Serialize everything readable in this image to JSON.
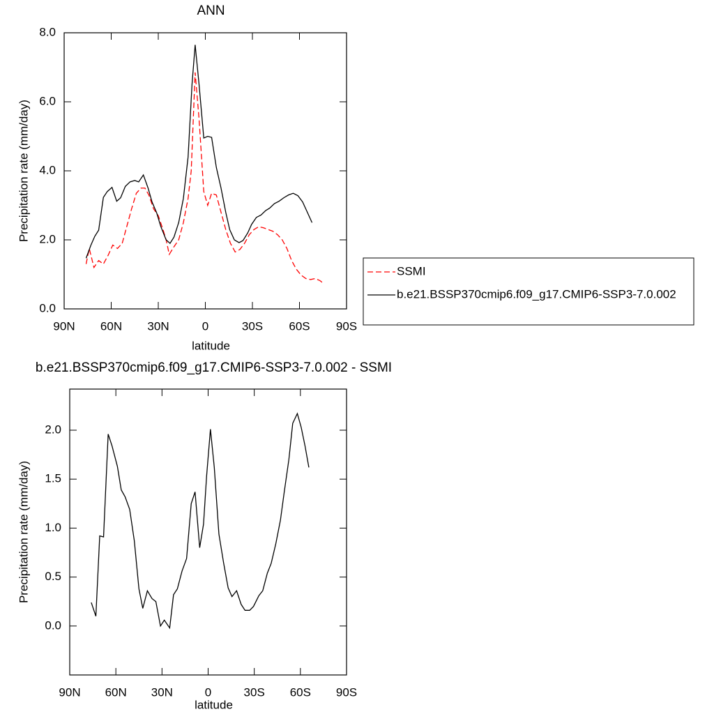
{
  "chart_data": [
    {
      "type": "line",
      "title": "ANN",
      "xlabel": "latitude",
      "ylabel": "Precipitation rate (mm/day)",
      "xlim": [
        90,
        -90
      ],
      "ylim": [
        0,
        8
      ],
      "xticks": [
        {
          "value": 90,
          "label": "90N"
        },
        {
          "value": 60,
          "label": "60N"
        },
        {
          "value": 30,
          "label": "30N"
        },
        0,
        {
          "value": -30,
          "label": "30S"
        },
        {
          "value": -60,
          "label": "60S"
        },
        {
          "value": -90,
          "label": "90S"
        }
      ],
      "yticks": [
        {
          "value": 0,
          "label": "0.0"
        },
        {
          "value": 2,
          "label": "2.0"
        },
        {
          "value": 4,
          "label": "4.0"
        },
        {
          "value": 6,
          "label": "6.0"
        },
        {
          "value": 8,
          "label": "8.0"
        }
      ],
      "legend": "right",
      "series": [
        {
          "name": "SSMI",
          "color": "#ff0000",
          "dash": true,
          "x": [
            76,
            74,
            71,
            68,
            65,
            62,
            59,
            56,
            53,
            50,
            47,
            44,
            41,
            38.5,
            36,
            33,
            30,
            27,
            25,
            23,
            20,
            17,
            14,
            11,
            9,
            6.5,
            4,
            1,
            -1.5,
            -4,
            -7,
            -10,
            -13,
            -16,
            -19,
            -22,
            -25,
            -28,
            -31,
            -34,
            -37,
            -40,
            -43,
            -46,
            -49,
            -52,
            -55,
            -58,
            -61,
            -64,
            -67,
            -70,
            -73,
            -75
          ],
          "values": [
            1.3,
            1.75,
            1.2,
            1.4,
            1.3,
            1.55,
            1.85,
            1.75,
            1.9,
            2.4,
            2.9,
            3.35,
            3.5,
            3.5,
            3.3,
            2.9,
            2.7,
            2.3,
            2.0,
            1.58,
            1.8,
            2.0,
            2.5,
            3.2,
            4.0,
            6.85,
            5.5,
            3.4,
            3.0,
            3.35,
            3.3,
            2.8,
            2.3,
            1.9,
            1.65,
            1.72,
            1.9,
            2.15,
            2.3,
            2.38,
            2.35,
            2.3,
            2.25,
            2.15,
            2.0,
            1.75,
            1.4,
            1.15,
            0.98,
            0.88,
            0.85,
            0.88,
            0.82,
            0.75
          ]
        },
        {
          "name": "b.e21.BSSP370cmip6.f09_g17.CMIP6-SSP3-7.0.002",
          "color": "#000000",
          "dash": false,
          "x": [
            76,
            73,
            70.5,
            68,
            65,
            62.5,
            59.5,
            56.5,
            54,
            51,
            48,
            45,
            42.5,
            39.5,
            36.5,
            34,
            31,
            28.5,
            25,
            22.5,
            20,
            17,
            14,
            11,
            8.5,
            6.5,
            4,
            1,
            -1.5,
            -4,
            -7,
            -10,
            -13,
            -15.5,
            -18.5,
            -21.5,
            -24,
            -27,
            -29.5,
            -32.5,
            -35.5,
            -38.5,
            -41,
            -44,
            -47,
            -50,
            -53,
            -56,
            -59,
            -62,
            -65,
            -68
          ],
          "values": [
            1.47,
            1.84,
            2.1,
            2.28,
            3.23,
            3.4,
            3.52,
            3.12,
            3.22,
            3.55,
            3.68,
            3.72,
            3.68,
            3.88,
            3.5,
            3.1,
            2.78,
            2.4,
            2.0,
            1.9,
            2.08,
            2.5,
            3.2,
            4.4,
            6.5,
            7.65,
            6.5,
            4.95,
            5.0,
            4.97,
            4.1,
            3.5,
            2.8,
            2.3,
            2.0,
            1.92,
            1.98,
            2.2,
            2.45,
            2.65,
            2.72,
            2.85,
            2.92,
            3.05,
            3.12,
            3.22,
            3.3,
            3.35,
            3.28,
            3.1,
            2.8,
            2.5
          ]
        }
      ]
    },
    {
      "type": "line",
      "title": "b.e21.BSSP370cmip6.f09_g17.CMIP6-SSP3-7.0.002 - SSMI",
      "xlabel": "latitude",
      "ylabel": "Precipitation rate (mm/day)",
      "xlim": [
        90,
        -90
      ],
      "ylim": [
        -0.5,
        2.42
      ],
      "xticks": [
        {
          "value": 90,
          "label": "90N"
        },
        {
          "value": 60,
          "label": "60N"
        },
        {
          "value": 30,
          "label": "30N"
        },
        0,
        {
          "value": -30,
          "label": "30S"
        },
        {
          "value": -60,
          "label": "60S"
        },
        {
          "value": -90,
          "label": "90S"
        }
      ],
      "yticks": [
        {
          "value": 0,
          "label": "0.0"
        },
        0.5,
        {
          "value": 1,
          "label": "1.0"
        },
        1.5,
        {
          "value": 2,
          "label": "2.0"
        }
      ],
      "series": [
        {
          "color": "#000000",
          "dash": false,
          "x": [
            76,
            73,
            70.5,
            68,
            65,
            62.5,
            59,
            56.5,
            54,
            51,
            48,
            45,
            42.5,
            39.5,
            36.5,
            34,
            31,
            28.5,
            25,
            22.5,
            20,
            17,
            14,
            11,
            8.5,
            5.5,
            3,
            1,
            -1.5,
            -4,
            -7,
            -10,
            -13,
            -15.5,
            -18.5,
            -21.5,
            -24,
            -27,
            -29.5,
            -33,
            -35.5,
            -38.5,
            -41,
            -44,
            -47,
            -49.5,
            -52.5,
            -55,
            -58,
            -60.5,
            -63,
            -65.5
          ],
          "values": [
            0.24,
            0.1,
            0.92,
            0.91,
            1.96,
            1.84,
            1.63,
            1.39,
            1.32,
            1.19,
            0.87,
            0.38,
            0.18,
            0.36,
            0.28,
            0.25,
            0.0,
            0.06,
            -0.02,
            0.32,
            0.38,
            0.56,
            0.69,
            1.25,
            1.37,
            0.8,
            1.04,
            1.53,
            2.01,
            1.62,
            0.94,
            0.65,
            0.39,
            0.3,
            0.36,
            0.22,
            0.16,
            0.16,
            0.2,
            0.31,
            0.36,
            0.54,
            0.64,
            0.84,
            1.08,
            1.37,
            1.7,
            2.07,
            2.17,
            2.03,
            1.84,
            1.62
          ]
        }
      ]
    }
  ]
}
